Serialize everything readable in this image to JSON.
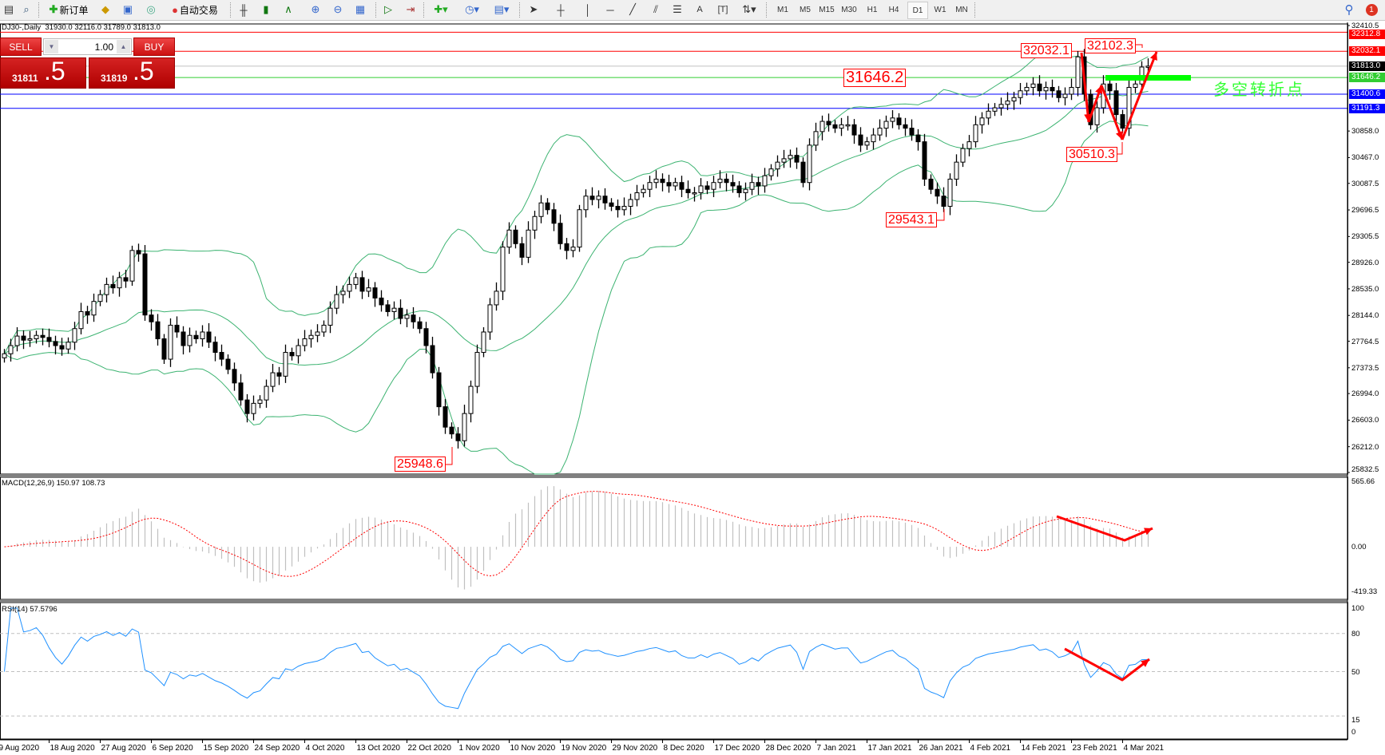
{
  "toolbar": {
    "new_order_label": "新订单",
    "auto_trading_label": "自动交易",
    "icons": [
      "new-chart-icon",
      "zoom-chart-icon",
      "new-order-icon",
      "market-watch-icon",
      "navigator-icon",
      "terminal-icon",
      "auto-trading-icon",
      "bar-chart-icon",
      "candlestick-icon",
      "line-chart-icon",
      "zoom-in-icon",
      "zoom-out-icon",
      "tile-windows-icon",
      "autoscroll-icon",
      "chart-shift-icon",
      "indicators-icon",
      "periods-icon",
      "templates-icon",
      "cursor-icon",
      "crosshair-icon",
      "vertical-line-icon",
      "horizontal-line-icon",
      "trendline-icon",
      "fibo-channel-icon",
      "fibo-retracement-icon",
      "text-icon",
      "text-label-icon",
      "arrows-icon",
      "search-icon",
      "notifications-icon"
    ],
    "timeframes": [
      "M1",
      "M5",
      "M15",
      "M30",
      "H1",
      "H4",
      "D1",
      "W1",
      "MN"
    ],
    "active_timeframe": "D1",
    "notification_count": "1"
  },
  "chart": {
    "title": "DJ30-,Daily  31930.0 32116.0 31789.0 31813.0",
    "symbol": "DJ30-",
    "period": "Daily"
  },
  "trade_panel": {
    "sell_label": "SELL",
    "buy_label": "BUY",
    "lot": "1.00",
    "sell_price_main": "31811",
    "sell_price_pips": ".5",
    "buy_price_main": "31819",
    "buy_price_pips": ".5"
  },
  "price_axis": {
    "ticks": [
      "32410.5",
      "30858.0",
      "30467.0",
      "30087.5",
      "29696.5",
      "29305.5",
      "28926.0",
      "28535.0",
      "28144.0",
      "27764.5",
      "27373.5",
      "26994.0",
      "26603.0",
      "26212.0",
      "25832.5"
    ],
    "range": [
      25832.5,
      32410.5
    ]
  },
  "levels": [
    {
      "value": "32312.8",
      "color": "#ff0000"
    },
    {
      "value": "32032.1",
      "color": "#ff0000"
    },
    {
      "value": "31813.0",
      "color": "#000000",
      "line": "#c0c0c0"
    },
    {
      "value": "31646.2",
      "color": "#32cd32"
    },
    {
      "value": "31400.6",
      "color": "#0000ff"
    },
    {
      "value": "31191.3",
      "color": "#0000ff"
    }
  ],
  "annotations": {
    "low_oct": "25948.6",
    "low_jan": "29543.1",
    "low_feb": "30510.3",
    "high_feb": "32032.1",
    "high_mar": "32102.3",
    "level_label": "31646.2",
    "pivot_note": "多空转折点"
  },
  "colors": {
    "bands": "#3cb371",
    "macd_hist": "#c0c0c0",
    "macd_signal": "#ff0000",
    "rsi": "#1e90ff",
    "arrows": "#ff0000",
    "pivot_zone": "#00ff00"
  },
  "chart_data": {
    "type": "candlestick",
    "indicators": [
      "Bollinger Bands",
      "MACD(12,26,9)",
      "RSI(14)"
    ],
    "close": [
      27580,
      27700,
      27840,
      27780,
      27800,
      27850,
      27820,
      27760,
      27700,
      27650,
      27750,
      27950,
      28200,
      28150,
      28350,
      28450,
      28600,
      28550,
      28700,
      28650,
      29100,
      29050,
      28150,
      28050,
      27800,
      27500,
      28000,
      27900,
      27700,
      27850,
      27800,
      27900,
      27750,
      27600,
      27500,
      27350,
      27150,
      26900,
      26700,
      26850,
      26900,
      27100,
      27300,
      27250,
      27600,
      27550,
      27700,
      27800,
      27850,
      27900,
      28000,
      28250,
      28450,
      28500,
      28600,
      28700,
      28500,
      28550,
      28400,
      28300,
      28200,
      28250,
      28100,
      28150,
      28050,
      27950,
      27700,
      27300,
      26800,
      26500,
      26400,
      26300,
      26700,
      27100,
      27600,
      27900,
      28300,
      28500,
      29150,
      29400,
      29200,
      29000,
      29400,
      29600,
      29800,
      29700,
      29500,
      29200,
      29100,
      29150,
      29700,
      29900,
      29850,
      29900,
      29800,
      29750,
      29700,
      29750,
      29850,
      29950,
      30000,
      30100,
      30150,
      30100,
      30050,
      30100,
      30000,
      29950,
      29950,
      30050,
      30000,
      30100,
      30150,
      30100,
      30050,
      29950,
      30000,
      30100,
      30050,
      30200,
      30300,
      30400,
      30450,
      30500,
      30400,
      30100,
      30650,
      30850,
      31000,
      30950,
      30900,
      30950,
      30950,
      30800,
      30650,
      30700,
      30800,
      30900,
      31000,
      31050,
      30950,
      30900,
      30800,
      30700,
      30150,
      30000,
      29900,
      29750,
      30150,
      30400,
      30600,
      30700,
      30950,
      31050,
      31150,
      31200,
      31250,
      31300,
      31350,
      31450,
      31500,
      31550,
      31450,
      31500,
      31450,
      31350,
      31400,
      31500,
      31950,
      31400,
      30950,
      31200,
      31550,
      31450,
      31100,
      30900,
      31500,
      31550,
      31800,
      31813
    ],
    "x_labels": [
      "9 Aug 2020",
      "18 Aug 2020",
      "27 Aug 2020",
      "6 Sep 2020",
      "15 Sep 2020",
      "24 Sep 2020",
      "4 Oct 2020",
      "13 Oct 2020",
      "22 Oct 2020",
      "1 Nov 2020",
      "10 Nov 2020",
      "19 Nov 2020",
      "29 Nov 2020",
      "8 Dec 2020",
      "17 Dec 2020",
      "28 Dec 2020",
      "7 Jan 2021",
      "17 Jan 2021",
      "26 Jan 2021",
      "4 Feb 2021",
      "14 Feb 2021",
      "23 Feb 2021",
      "4 Mar 2021"
    ],
    "macd": {
      "label": "MACD(12,26,9) 150.97 108.73",
      "ticks": [
        "565.66",
        "0.00",
        "-419.33"
      ],
      "range": [
        -419.33,
        565.66
      ]
    },
    "rsi": {
      "label": "RSI(14) 57.5796",
      "ticks": [
        "100",
        "80",
        "50",
        "15",
        "0"
      ],
      "levels": [
        80,
        50,
        15
      ],
      "range": [
        0,
        100
      ]
    },
    "grid": false
  }
}
